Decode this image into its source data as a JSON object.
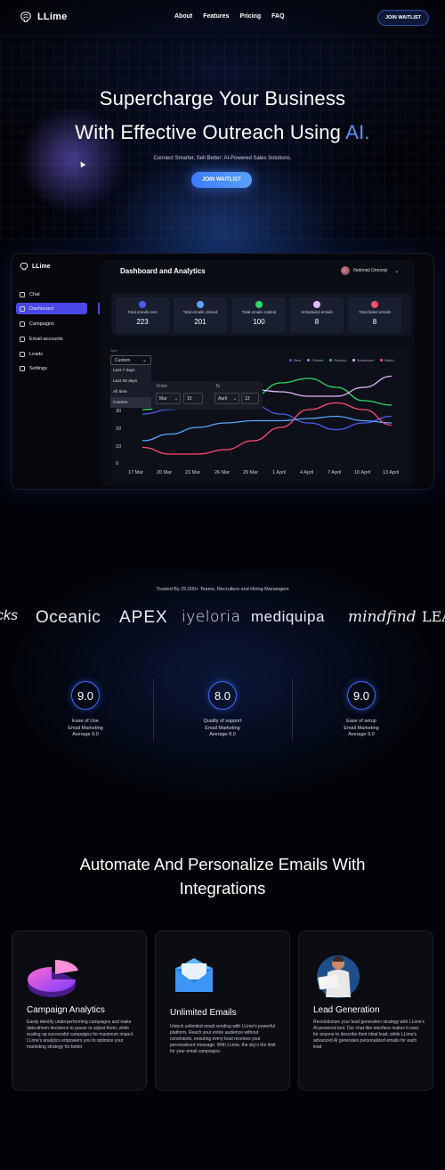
{
  "nav": {
    "brand": "LLime",
    "links": [
      "About",
      "Features",
      "Pricing",
      "FAQ"
    ],
    "cta": "JOIN WAITLIST"
  },
  "hero": {
    "title_line1": "Supercharge Your Business",
    "title_line2_pre": "With Effective Outreach Using ",
    "title_line2_accent": "AI.",
    "subtitle": "Connect Smarter, Sell Better: AI-Powered Sales Solutions.",
    "cta": "JOIN WAITLIST"
  },
  "dashboard": {
    "brand": "LLime",
    "title": "Dashboard and Analytics",
    "user_name": "Ifedimeji Omoniyi",
    "sidebar": [
      "Chat",
      "Dashboard",
      "Campaigns",
      "Email-accounts",
      "Leads",
      "Settings"
    ],
    "active_item": "Dashboard",
    "stats": [
      {
        "label": "Total emails sent",
        "value": "223",
        "color": "#4b5cf0"
      },
      {
        "label": "Total emails clicked",
        "value": "201",
        "color": "#5aa6ff"
      },
      {
        "label": "Total emails replied",
        "value": "100",
        "color": "#2bdc6a"
      },
      {
        "label": "Scheduled emails",
        "value": "8",
        "color": "#e7b9ff"
      },
      {
        "label": "Total failed emails",
        "value": "8",
        "color": "#ff4b6e"
      }
    ],
    "filter": {
      "label": "Sort",
      "selected": "Custom",
      "options": [
        "Last 7 days",
        "Last 28 days",
        "All time",
        "Custom"
      ],
      "from_label": "From",
      "to_label": "To",
      "from_month": "Mar",
      "from_day": "15",
      "to_month": "April",
      "to_day": "13"
    },
    "legend": [
      {
        "name": "Sent",
        "color": "#4b5cf0"
      },
      {
        "name": "Clicked",
        "color": "#5aa6ff"
      },
      {
        "name": "Replied",
        "color": "#2bdc6a"
      },
      {
        "name": "Scheduled",
        "color": "#e7b9ff"
      },
      {
        "name": "Failed",
        "color": "#ff4b6e"
      }
    ]
  },
  "chart_data": {
    "type": "line",
    "x": [
      "17 Mar",
      "20 Mar",
      "23 Mar",
      "26 Mar",
      "29 Mar",
      "1 April",
      "4 April",
      "7 April",
      "10 April",
      "13 April"
    ],
    "yticks": [
      0,
      10,
      20,
      30
    ],
    "ylim": [
      0,
      40
    ],
    "series": [
      {
        "name": "Sent",
        "color": "#4b5cf0",
        "values": [
          22,
          24,
          26,
          27,
          26,
          22,
          18,
          15,
          18,
          21
        ]
      },
      {
        "name": "Clicked",
        "color": "#5aa6ff",
        "values": [
          10,
          13,
          16,
          18,
          19,
          19,
          20,
          21,
          19,
          18
        ]
      },
      {
        "name": "Replied",
        "color": "#2bdc6a",
        "values": [
          24,
          25,
          25,
          26,
          30,
          36,
          38,
          34,
          28,
          26
        ]
      },
      {
        "name": "Scheduled",
        "color": "#e7b9ff",
        "values": [
          28,
          30,
          31,
          32,
          33,
          32,
          30,
          30,
          34,
          39
        ]
      },
      {
        "name": "Failed",
        "color": "#ff4b6e",
        "values": [
          7,
          4,
          4,
          6,
          10,
          16,
          24,
          27,
          24,
          17
        ]
      }
    ]
  },
  "trust": {
    "text": "Trusted By 25,000+ Teams, Recruiters and Hiring Manangers",
    "brands": [
      "cks",
      "Oceanic",
      "APEX",
      "iyeloria",
      "mediquipa",
      "mindfind",
      "LEAN"
    ]
  },
  "ratings": [
    {
      "score": "9.0",
      "title": "Ease of Use",
      "subtitle": "Email Marketing",
      "avg": "Average 9.0"
    },
    {
      "score": "8.0",
      "title": "Quality of support",
      "subtitle": "Email Marketing",
      "avg": "Average 8.0"
    },
    {
      "score": "9.0",
      "title": "Ease of setup",
      "subtitle": "Email Marketing",
      "avg": "Average 9.0"
    }
  ],
  "section": {
    "title_line1": "Automate And Personalize Emails With",
    "title_line2": "Integrations"
  },
  "cards": [
    {
      "title": "Campaign Analytics",
      "text": "Easily identify underperforming campaigns and make data-driven decisions to pause or adjust them, while scaling up successful campaigns for maximum impact. LLime's analytics empowers you to optimize your marketing strategy for better"
    },
    {
      "title": "Unlimited Emails",
      "text": "Unlock unlimited email sending with LLime's powerful platform. Reach your entire audience without constraints, ensuring every lead receives your personalized message. With LLime, the sky's the limit for your email campaigns."
    },
    {
      "title": "Lead Generation",
      "text": "Revolutionize your lead generation strategy with LLime's AI-powered tool. Our chat-like interface makes it easy for anyone to describe their ideal lead, while LLime's advanced AI generates personalized emails for each lead"
    }
  ]
}
